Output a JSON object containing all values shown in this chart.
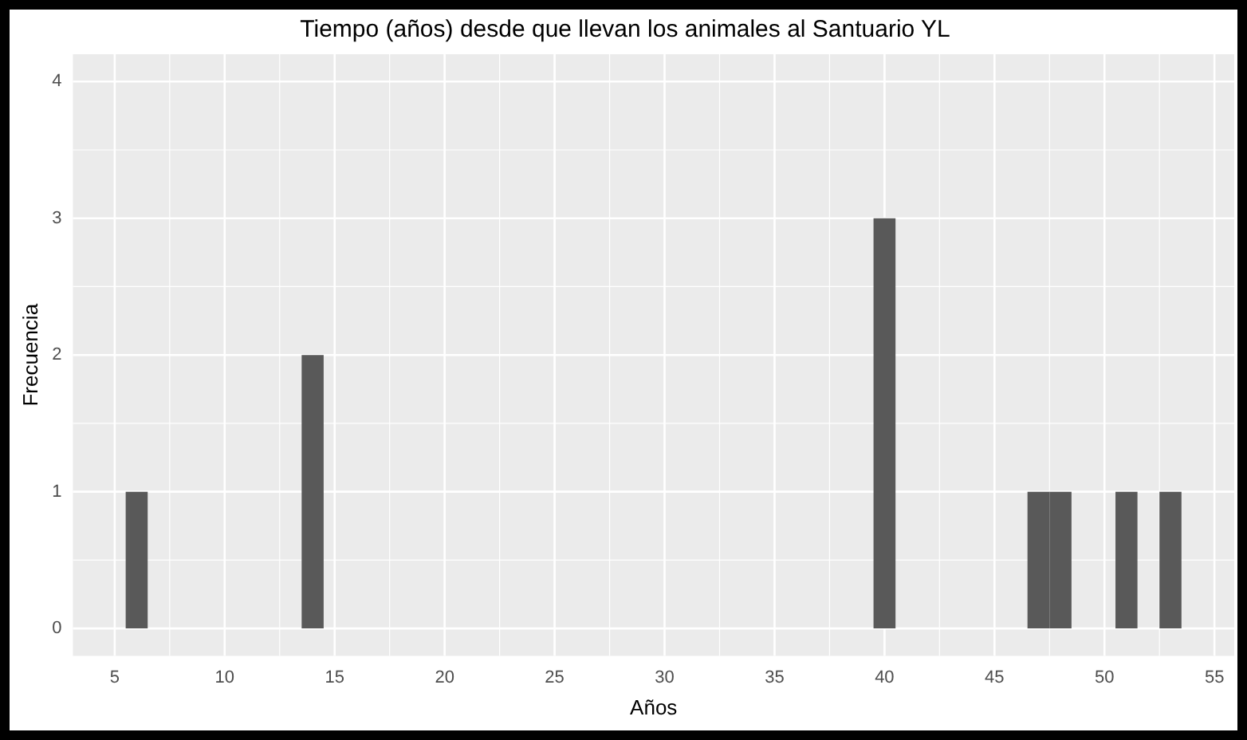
{
  "chart_data": {
    "type": "histogram",
    "title": "Tiempo (años) desde que llevan los animales al Santuario YL",
    "xlabel": "Años",
    "ylabel": "Frecuencia",
    "bins": [
      5.5,
      6.5,
      7.5,
      8.5,
      9.5,
      10.5,
      11.5,
      12.5,
      13.5,
      14.5,
      15.5,
      16.5,
      17.5,
      18.5,
      19.5,
      20.5,
      21.5,
      22.5,
      23.5,
      24.5,
      25.5,
      26.5,
      27.5,
      28.5,
      29.5,
      30.5,
      31.5,
      32.5,
      33.5,
      34.5,
      35.5,
      36.5,
      37.5,
      38.5,
      39.5,
      40.5,
      41.5,
      42.5,
      43.5,
      44.5,
      45.5,
      46.5,
      47.5,
      48.5,
      49.5,
      50.5,
      51.5,
      52.5,
      53.5
    ],
    "values": [
      1,
      0,
      0,
      0,
      0,
      0,
      0,
      0,
      2,
      0,
      0,
      0,
      0,
      0,
      0,
      0,
      0,
      0,
      0,
      0,
      0,
      0,
      0,
      0,
      0,
      0,
      0,
      0,
      0,
      0,
      0,
      0,
      0,
      0,
      3,
      0,
      0,
      0,
      0,
      0,
      0,
      1,
      1,
      0,
      0,
      1,
      0,
      1
    ],
    "color": "#595959",
    "xlim": [
      3.1,
      55.9
    ],
    "xticks": [
      5,
      10,
      15,
      20,
      25,
      30,
      35,
      40,
      45,
      50,
      55
    ],
    "ylim": [
      -0.2,
      4.2
    ],
    "yticks": [
      0,
      1,
      2,
      3,
      4
    ],
    "grid": true
  }
}
